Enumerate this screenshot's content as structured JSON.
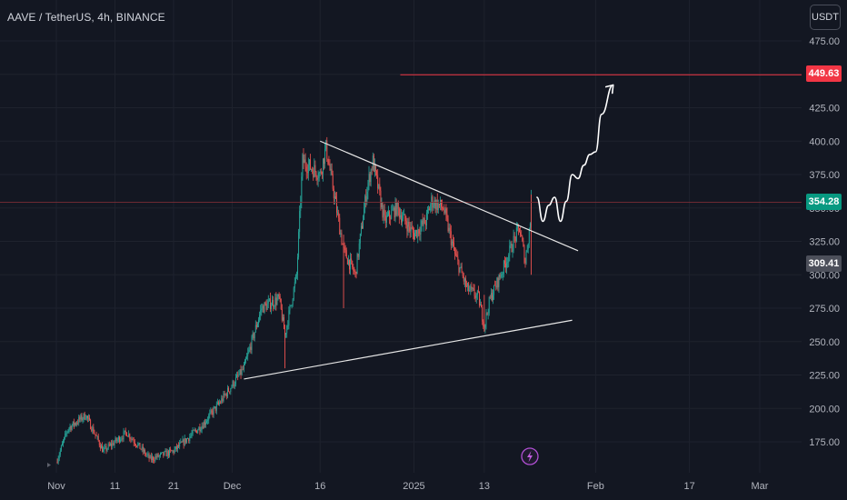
{
  "header": {
    "symbol": "AAVE / TetherUS, 4h, BINANCE",
    "currency_button": "USDT"
  },
  "colors": {
    "background": "#131722",
    "grid": "#1e222d",
    "up_candle": "#26a69a",
    "down_candle": "#ef5350",
    "target_line": "#f23645",
    "current_tag": "#089981",
    "low_tag": "#4c4f5a",
    "annotation": "#ffffff"
  },
  "icons": {
    "event_marker": "lightning-icon"
  },
  "chart_data": {
    "type": "candlestick",
    "y_range": [
      150,
      490
    ],
    "y_ticks": [
      175,
      200,
      225,
      250,
      275,
      300,
      325,
      350,
      375,
      400,
      425,
      450,
      475
    ],
    "y_tick_labels": [
      "175.00",
      "200.00",
      "225.00",
      "250.00",
      "275.00",
      "300.00",
      "325.00",
      "350.00",
      "375.00",
      "400.00",
      "425.00",
      "450.00",
      "475.00"
    ],
    "x_axis": {
      "labels": [
        "Nov",
        "11",
        "21",
        "Dec",
        "16",
        "2025",
        "13",
        "Feb",
        "17",
        "Mar"
      ],
      "label_dates": [
        "2024-11-01",
        "2024-11-11",
        "2024-11-21",
        "2024-12-01",
        "2024-12-16",
        "2025-01-01",
        "2025-01-13",
        "2025-02-01",
        "2025-02-17",
        "2025-03-01"
      ]
    },
    "price_tags": {
      "target": {
        "label": "449.63",
        "value": 449.63
      },
      "current": {
        "label": "354.28",
        "value": 354.28
      },
      "low": {
        "label": "309.41",
        "value": 309.41
      }
    },
    "key_points": [
      {
        "date": "2024-11-01",
        "price": 160
      },
      {
        "date": "2024-11-03",
        "price": 185
      },
      {
        "date": "2024-11-06",
        "price": 195
      },
      {
        "date": "2024-11-09",
        "price": 168
      },
      {
        "date": "2024-11-13",
        "price": 182
      },
      {
        "date": "2024-11-17",
        "price": 162
      },
      {
        "date": "2024-11-21",
        "price": 168
      },
      {
        "date": "2024-11-26",
        "price": 188
      },
      {
        "date": "2024-11-29",
        "price": 205
      },
      {
        "date": "2024-12-03",
        "price": 230
      },
      {
        "date": "2024-12-06",
        "price": 275
      },
      {
        "date": "2024-12-09",
        "price": 282
      },
      {
        "date": "2024-12-10",
        "price": 255
      },
      {
        "date": "2024-12-12",
        "price": 300
      },
      {
        "date": "2024-12-13",
        "price": 385
      },
      {
        "date": "2024-12-16",
        "price": 375
      },
      {
        "date": "2024-12-17",
        "price": 395
      },
      {
        "date": "2024-12-18",
        "price": 370
      },
      {
        "date": "2024-12-20",
        "price": 318
      },
      {
        "date": "2024-12-22",
        "price": 300
      },
      {
        "date": "2024-12-24",
        "price": 365
      },
      {
        "date": "2024-12-25",
        "price": 385
      },
      {
        "date": "2024-12-27",
        "price": 340
      },
      {
        "date": "2024-12-29",
        "price": 350
      },
      {
        "date": "2025-01-01",
        "price": 330
      },
      {
        "date": "2025-01-03",
        "price": 340
      },
      {
        "date": "2025-01-04",
        "price": 355
      },
      {
        "date": "2025-01-06",
        "price": 350
      },
      {
        "date": "2025-01-08",
        "price": 315
      },
      {
        "date": "2025-01-10",
        "price": 290
      },
      {
        "date": "2025-01-12",
        "price": 283
      },
      {
        "date": "2025-01-13",
        "price": 262
      },
      {
        "date": "2025-01-14",
        "price": 282
      },
      {
        "date": "2025-01-16",
        "price": 302
      },
      {
        "date": "2025-01-18",
        "price": 325
      },
      {
        "date": "2025-01-19",
        "price": 335
      },
      {
        "date": "2025-01-20",
        "price": 310
      },
      {
        "date": "2025-01-21",
        "price": 345
      },
      {
        "date": "2025-01-21",
        "price": 354.28
      }
    ],
    "trendlines": [
      {
        "name": "descending-resistance",
        "from": {
          "date": "2024-12-16",
          "price": 400
        },
        "to": {
          "date": "2025-01-29",
          "price": 318
        }
      },
      {
        "name": "ascending-support",
        "from": {
          "date": "2024-12-03",
          "price": 222
        },
        "to": {
          "date": "2025-01-28",
          "price": 266
        }
      }
    ],
    "target_line": {
      "from_date": "2025-01-01",
      "value": 449.63
    },
    "projection_path": [
      {
        "date": "2025-01-22",
        "price": 358
      },
      {
        "date": "2025-01-23",
        "price": 340
      },
      {
        "date": "2025-01-24",
        "price": 352
      },
      {
        "date": "2025-01-25",
        "price": 358
      },
      {
        "date": "2025-01-26",
        "price": 340
      },
      {
        "date": "2025-01-27",
        "price": 355
      },
      {
        "date": "2025-01-28",
        "price": 375
      },
      {
        "date": "2025-01-29",
        "price": 372
      },
      {
        "date": "2025-01-30",
        "price": 382
      },
      {
        "date": "2025-01-31",
        "price": 390
      },
      {
        "date": "2025-02-01",
        "price": 392
      },
      {
        "date": "2025-02-02",
        "price": 420
      },
      {
        "date": "2025-02-04",
        "price": 442
      }
    ]
  }
}
